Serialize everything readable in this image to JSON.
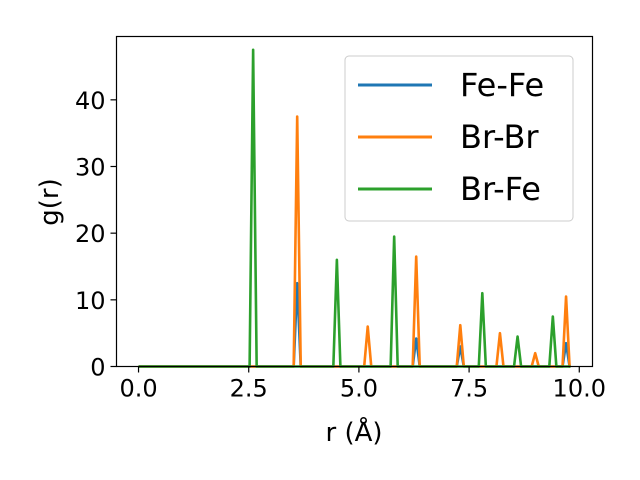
{
  "chart_data": {
    "type": "line",
    "xlabel": "r (Å)",
    "ylabel": "g(r)",
    "xlim": [
      -0.5,
      10.3
    ],
    "ylim": [
      0,
      49.5
    ],
    "xticks": [
      0.0,
      2.5,
      5.0,
      7.5,
      10.0
    ],
    "xtick_labels": [
      "0.0",
      "2.5",
      "5.0",
      "7.5",
      "10.0"
    ],
    "yticks": [
      0,
      10,
      20,
      30,
      40
    ],
    "ytick_labels": [
      "0",
      "10",
      "20",
      "30",
      "40"
    ],
    "grid": false,
    "legend_position": "top-right",
    "series": [
      {
        "name": "Fe-Fe",
        "color": "#1f77b4",
        "x": [
          0.0,
          3.52,
          3.6,
          3.68,
          6.22,
          6.3,
          6.38,
          7.22,
          7.3,
          7.38,
          9.62,
          9.7,
          9.78,
          9.8
        ],
        "y": [
          0,
          0,
          12.5,
          0,
          0,
          4.2,
          0,
          0,
          3.0,
          0,
          0,
          3.5,
          0,
          0
        ]
      },
      {
        "name": "Br-Br",
        "color": "#ff7f0e",
        "x": [
          0.0,
          3.52,
          3.6,
          3.68,
          5.12,
          5.2,
          5.28,
          6.22,
          6.3,
          6.38,
          7.22,
          7.3,
          7.38,
          8.12,
          8.2,
          8.28,
          8.92,
          9.0,
          9.08,
          9.62,
          9.7,
          9.78,
          9.8
        ],
        "y": [
          0,
          0,
          37.5,
          0,
          0,
          6.0,
          0,
          0,
          16.5,
          0,
          0,
          6.2,
          0,
          0,
          5.0,
          0,
          0,
          2.0,
          0,
          0,
          10.5,
          0,
          0
        ]
      },
      {
        "name": "Br-Fe",
        "color": "#2ca02c",
        "x": [
          0.0,
          2.52,
          2.6,
          2.68,
          4.42,
          4.5,
          4.58,
          5.72,
          5.8,
          5.88,
          7.72,
          7.8,
          7.88,
          8.52,
          8.6,
          8.68,
          9.32,
          9.4,
          9.48,
          9.8
        ],
        "y": [
          0,
          0,
          47.5,
          0,
          0,
          16.0,
          0,
          0,
          19.5,
          0,
          0,
          11.0,
          0,
          0,
          4.5,
          0,
          0,
          7.5,
          0,
          0
        ]
      }
    ]
  }
}
